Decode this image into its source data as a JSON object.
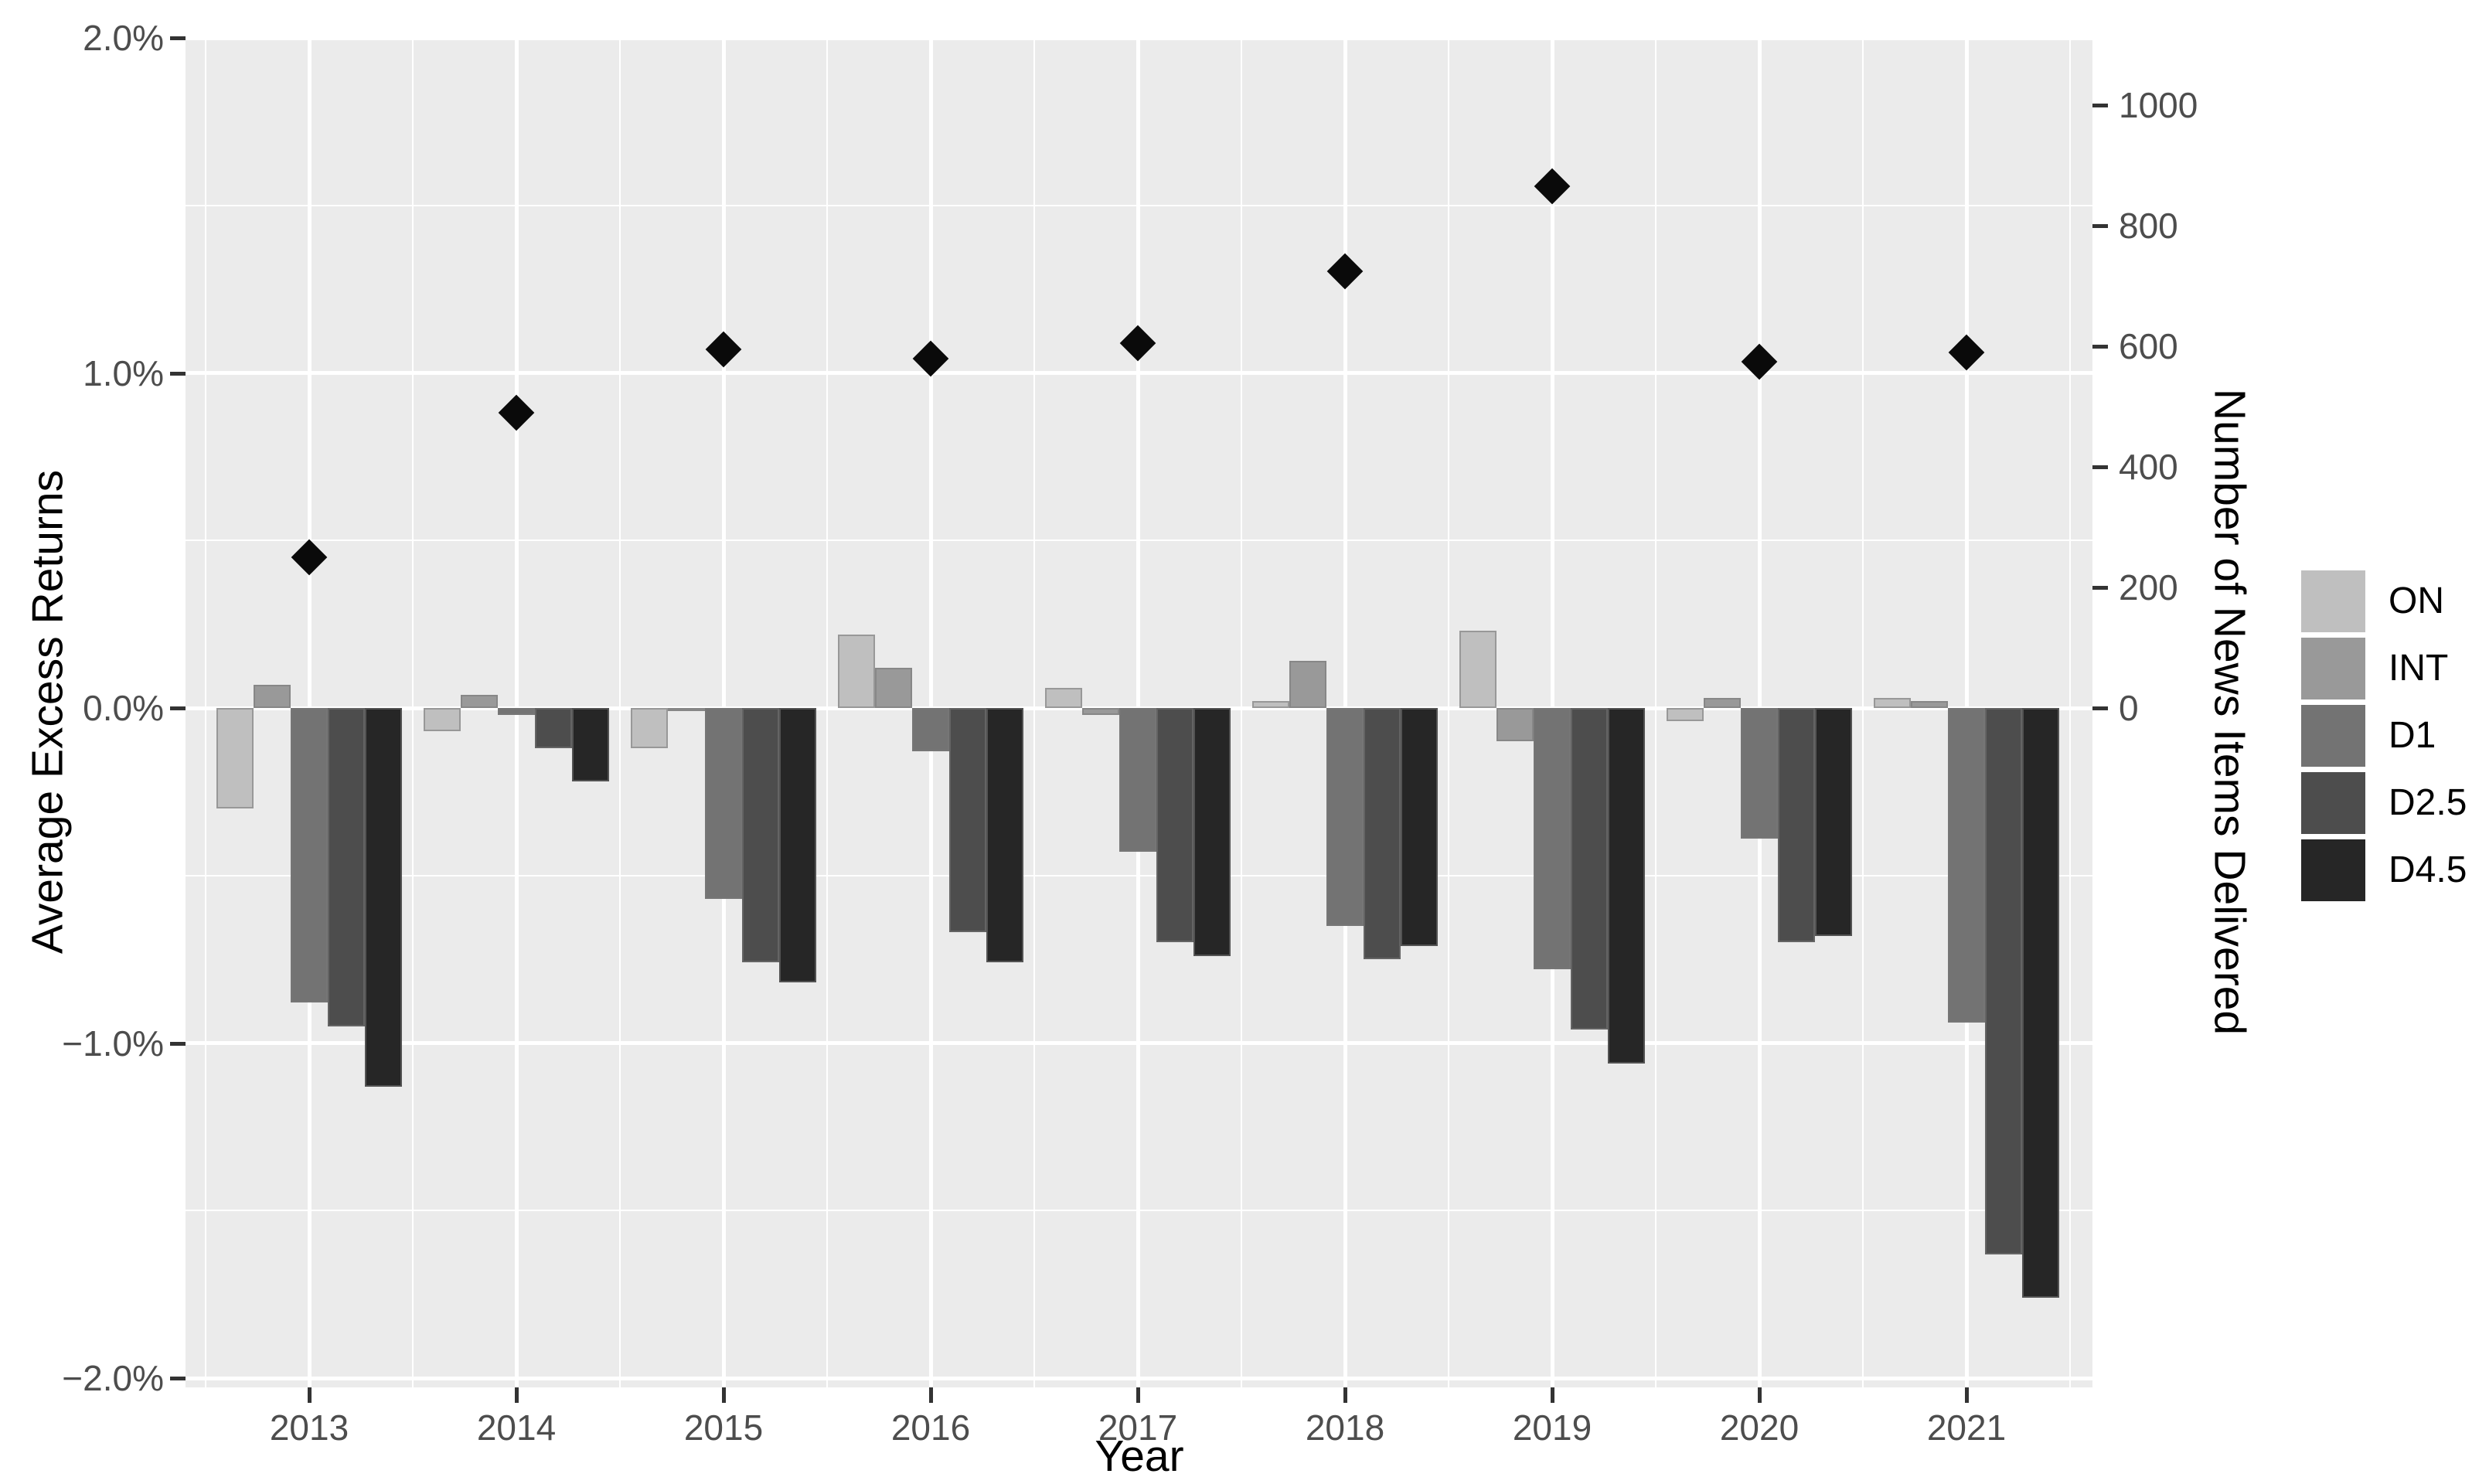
{
  "chart_data": {
    "type": "bar",
    "subtype": "grouped-bars-with-diamond-scatter-dual-axis",
    "title": "",
    "categories": [
      "2013",
      "2014",
      "2015",
      "2016",
      "2017",
      "2018",
      "2019",
      "2020",
      "2021"
    ],
    "series": [
      {
        "name": "ON",
        "color": "#BFBFBF",
        "values": [
          -0.3,
          -0.07,
          -0.12,
          0.22,
          0.06,
          0.02,
          0.23,
          -0.04,
          0.03
        ]
      },
      {
        "name": "INT",
        "color": "#999999",
        "values": [
          0.07,
          0.04,
          -0.01,
          0.12,
          -0.02,
          0.14,
          -0.1,
          0.03,
          0.02
        ]
      },
      {
        "name": "D1",
        "color": "#737373",
        "values": [
          -0.88,
          -0.02,
          -0.57,
          -0.13,
          -0.43,
          -0.65,
          -0.78,
          -0.39,
          -0.94
        ]
      },
      {
        "name": "D2.5",
        "color": "#4D4D4D",
        "values": [
          -0.95,
          -0.12,
          -0.76,
          -0.67,
          -0.7,
          -0.75,
          -0.96,
          -0.7,
          -1.63
        ]
      },
      {
        "name": "D4.5",
        "color": "#262626",
        "values": [
          -1.13,
          -0.22,
          -0.82,
          -0.76,
          -0.74,
          -0.71,
          -1.06,
          -0.68,
          -1.76
        ]
      }
    ],
    "scatter_series": {
      "name": "Number of News Items Delivered",
      "marker": "diamond",
      "color": "#0a0a0a",
      "axis": "right",
      "values": [
        250,
        490,
        595,
        580,
        605,
        725,
        865,
        575,
        590
      ]
    },
    "xlabel": "Year",
    "left_axis": {
      "title": "Average Excess Returns",
      "units": "percent",
      "range": [
        -2.03,
        2.0
      ],
      "tick_values": [
        2,
        1,
        0,
        -1,
        -2
      ],
      "tick_labels": [
        "2.0%",
        "1.0%",
        "0.0%",
        "−1.0%",
        "−2.0%"
      ],
      "minor_tick_values": [
        1.5,
        0.5,
        -0.5,
        -1.5
      ]
    },
    "right_axis": {
      "title": "Number of News Items Delivered",
      "units": "count",
      "tick_values": [
        1000,
        800,
        600,
        400,
        200,
        0
      ],
      "tick_labels": [
        "1000",
        "800",
        "600",
        "400",
        "200",
        "0"
      ]
    },
    "legend_position": "right",
    "legend_entries": [
      "ON",
      "INT",
      "D1",
      "D2.5",
      "D4.5"
    ],
    "grid": true,
    "panel_background": "#EBEBEB",
    "gridline_color": "#FFFFFF",
    "tick_label_color": "#4D4D4D",
    "axis_title_color": "#000000"
  }
}
